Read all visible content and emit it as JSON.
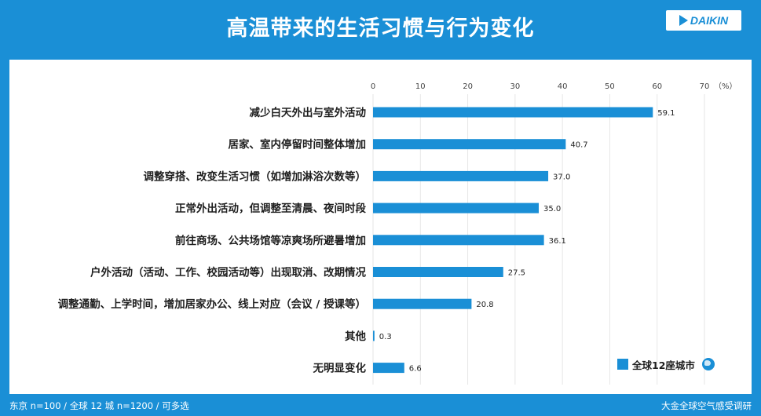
{
  "header": {
    "title": "高温带来的生活习惯与行为变化",
    "logo_text": "DAIKIN"
  },
  "colors": {
    "background": "#1a8fd6",
    "panel": "#ffffff",
    "bar": "#1a8fd6",
    "grid": "#e6e6e6"
  },
  "chart_data": {
    "type": "bar",
    "orientation": "horizontal",
    "categories": [
      "减少白天外出与室外活动",
      "居家、室内停留时间整体增加",
      "调整穿搭、改变生活习惯（如增加淋浴次数等）",
      "正常外出活动，但调整至清晨、夜间时段",
      "前往商场、公共场馆等凉爽场所避暑增加",
      "户外活动（活动、工作、校园活动等）出现取消、改期情况",
      "调整通勤、上学时间，增加居家办公、线上对应（会议 / 授课等）",
      "其他",
      "无明显变化"
    ],
    "series": [
      {
        "name": "全球12座城市",
        "values": [
          59.1,
          40.7,
          37.0,
          35.0,
          36.1,
          27.5,
          20.8,
          0.3,
          6.6
        ],
        "labels": [
          "59.1",
          "40.7",
          "37.0",
          "35.0",
          "36.1",
          "27.5",
          "20.8",
          "0.3",
          "6.6"
        ]
      }
    ],
    "xlim": [
      0,
      70
    ],
    "xticks": [
      "0",
      "10",
      "20",
      "30",
      "40",
      "50",
      "60",
      "70"
    ],
    "unit": "（%）",
    "grid": true,
    "legend_position": "bottom-right"
  },
  "legend": {
    "label": "全球12座城市",
    "icon": "globe-icon"
  },
  "footer": {
    "left": "东京 n=100 / 全球 12 城 n=1200 / 可多选",
    "right": "大金全球空气感受调研"
  }
}
